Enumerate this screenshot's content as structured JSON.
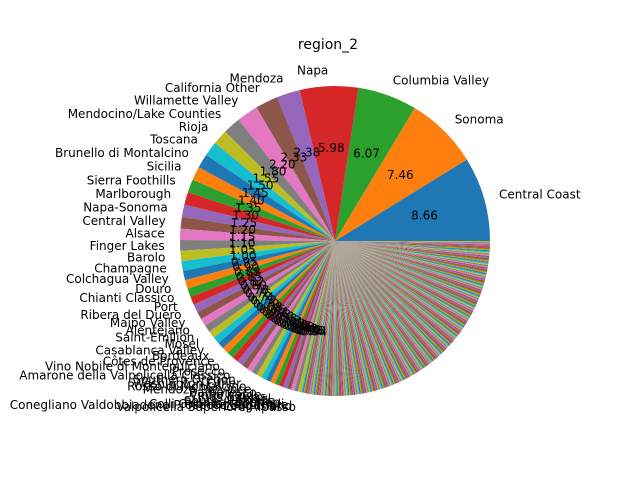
{
  "chart_data": {
    "type": "pie",
    "title": "region_2",
    "start_angle": 0,
    "direction": "counterclockwise",
    "colors": [
      "#1f77b4",
      "#ff7f0e",
      "#2ca02c",
      "#d62728",
      "#9467bd",
      "#8c564b",
      "#e377c2",
      "#7f7f7f",
      "#bcbd22",
      "#17becf"
    ],
    "slices": [
      {
        "label": "Central Coast",
        "value": 8.66,
        "pct_label": "8.66"
      },
      {
        "label": "Sonoma",
        "value": 7.46,
        "pct_label": "7.46"
      },
      {
        "label": "Columbia Valley",
        "value": 6.07,
        "pct_label": "6.07"
      },
      {
        "label": "Napa",
        "value": 5.98,
        "pct_label": "5.98"
      },
      {
        "label": "Mendoza",
        "value": 2.38,
        "pct_label": "2.38"
      },
      {
        "label": "California Other",
        "value": 2.33,
        "pct_label": "2.33"
      },
      {
        "label": "Willamette Valley",
        "value": 2.2,
        "pct_label": "2.20"
      },
      {
        "label": "Mendocino/Lake Counties",
        "value": 1.8,
        "pct_label": "1.80"
      },
      {
        "label": "Rioja",
        "value": 1.55,
        "pct_label": "1.55"
      },
      {
        "label": "Toscana",
        "value": 1.5,
        "pct_label": "1.50"
      },
      {
        "label": "Brunello di Montalcino",
        "value": 1.45,
        "pct_label": "1.45"
      },
      {
        "label": "Sicilia",
        "value": 1.4,
        "pct_label": "1.40"
      },
      {
        "label": "Sierra Foothills",
        "value": 1.35,
        "pct_label": "1.35"
      },
      {
        "label": "Marlborough",
        "value": 1.3,
        "pct_label": "1.30"
      },
      {
        "label": "Napa-Sonoma",
        "value": 1.25,
        "pct_label": "1.25"
      },
      {
        "label": "Central Valley",
        "value": 1.2,
        "pct_label": "1.20"
      },
      {
        "label": "Alsace",
        "value": 1.15,
        "pct_label": "1.15"
      },
      {
        "label": "Finger Lakes",
        "value": 1.1,
        "pct_label": "1.10"
      },
      {
        "label": "Barolo",
        "value": 1.05,
        "pct_label": "1.05"
      },
      {
        "label": "Champagne",
        "value": 1.0,
        "pct_label": "1.00"
      },
      {
        "label": "Colchagua Valley",
        "value": 0.95,
        "pct_label": "0.95"
      },
      {
        "label": "Douro",
        "value": 0.9,
        "pct_label": "0.90"
      },
      {
        "label": "Chianti Classico",
        "value": 0.88,
        "pct_label": "0.88"
      },
      {
        "label": "Port",
        "value": 0.85,
        "pct_label": "0.85"
      },
      {
        "label": "Ribera del Duero",
        "value": 0.82,
        "pct_label": "0.82"
      },
      {
        "label": "Maipo Valley",
        "value": 0.8,
        "pct_label": "0.80"
      },
      {
        "label": "Alentejano",
        "value": 0.78,
        "pct_label": "0.78"
      },
      {
        "label": "Saint-Émilion",
        "value": 0.76,
        "pct_label": "0.76"
      },
      {
        "label": "Mosel",
        "value": 0.74,
        "pct_label": "0.74"
      },
      {
        "label": "Casablanca Valley",
        "value": 0.72,
        "pct_label": "0.72"
      },
      {
        "label": "Bordeaux",
        "value": 0.7,
        "pct_label": "0.70"
      },
      {
        "label": "Côtes de Provence",
        "value": 0.68,
        "pct_label": "0.68"
      },
      {
        "label": "Vino Nobile di Montepulciano",
        "value": 0.66,
        "pct_label": "0.66"
      },
      {
        "label": "Prosecco",
        "value": 0.64,
        "pct_label": "0.64"
      },
      {
        "label": "Amarone della Valpolicella Classico",
        "value": 0.62,
        "pct_label": "0.62"
      },
      {
        "label": "Southern Oregon",
        "value": 0.6,
        "pct_label": "0.60"
      },
      {
        "label": "Washington Other",
        "value": 0.58,
        "pct_label": "0.58"
      },
      {
        "label": "Rosso di Montalcino",
        "value": 0.56,
        "pct_label": "0.56"
      },
      {
        "label": "Mendoza Province",
        "value": 0.54,
        "pct_label": "0.54"
      },
      {
        "label": "Barbaresco",
        "value": 0.52,
        "pct_label": "0.52"
      },
      {
        "label": "Vinho Verde",
        "value": 0.5,
        "pct_label": "0.50"
      },
      {
        "label": "Rías Baixas",
        "value": 0.48,
        "pct_label": "0.48"
      },
      {
        "label": "Mosel",
        "value": 0.46,
        "pct_label": "0.46"
      },
      {
        "label": "South Australia",
        "value": 0.44,
        "pct_label": "0.44"
      },
      {
        "label": "Pessac-Léognan",
        "value": 0.42,
        "pct_label": "0.42"
      },
      {
        "label": "Colli Orientali del Friuli",
        "value": 0.4,
        "pct_label": "0.40"
      },
      {
        "label": "Conegliano Valdobbiadene Prosecco Superiore",
        "value": 0.38,
        "pct_label": "0.38"
      },
      {
        "label": "Long Island",
        "value": 0.36,
        "pct_label": "0.36"
      },
      {
        "label": "Valpolicella Superiore Ripasso",
        "value": 0.34,
        "pct_label": "0.34"
      }
    ],
    "rim_slice_count": 240,
    "rim_remaining_share": 28.0
  }
}
